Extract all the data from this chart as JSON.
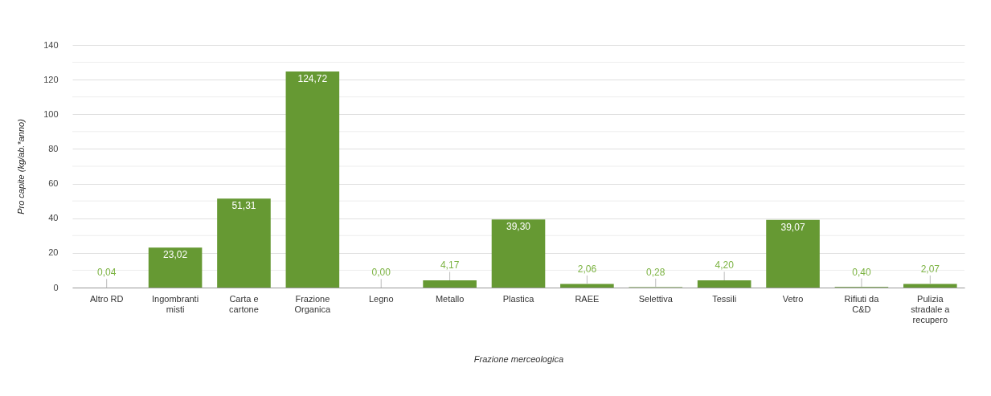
{
  "chart_data": {
    "type": "bar",
    "xlabel": "Frazione merceologica",
    "ylabel": "Pro capite (kg/ab.*anno)",
    "categories": [
      "Altro RD",
      "Ingombranti misti",
      "Carta e cartone",
      "Frazione Organica",
      "Legno",
      "Metallo",
      "Plastica",
      "RAEE",
      "Selettiva",
      "Tessili",
      "Vetro",
      "Rifiuti da C&D",
      "Pulizia stradale a recupero"
    ],
    "values": [
      0.04,
      23.02,
      51.31,
      124.72,
      0.0,
      4.17,
      39.3,
      2.06,
      0.28,
      4.2,
      39.07,
      0.4,
      2.07
    ],
    "value_labels": [
      "0,04",
      "23,02",
      "51,31",
      "124,72",
      "0,00",
      "4,17",
      "39,30",
      "2,06",
      "0,28",
      "4,20",
      "39,07",
      "0,40",
      "2,07"
    ],
    "color": "#669933",
    "ylim": [
      0,
      140
    ],
    "yticks": [
      0,
      {
        "value": 10,
        "label": null
      },
      20,
      {
        "value": 30,
        "label": null
      },
      40,
      {
        "value": 50,
        "label": null
      },
      60,
      {
        "value": 70,
        "label": null
      },
      80,
      {
        "value": 90,
        "label": null
      },
      100,
      {
        "value": 110,
        "label": null
      },
      120,
      {
        "value": 130,
        "label": null
      },
      140
    ],
    "grid": "y"
  }
}
